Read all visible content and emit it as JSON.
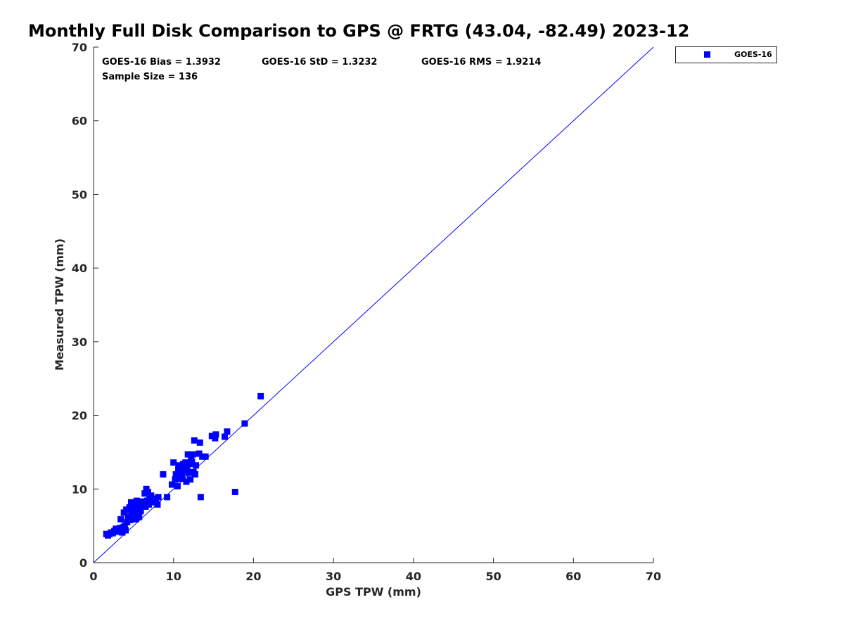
{
  "chart_data": {
    "type": "scatter",
    "title": "Monthly Full Disk Comparison to GPS @ FRTG (43.04, -82.49) 2023-12",
    "xlabel": "GPS TPW (mm)",
    "ylabel": "Measured TPW (mm)",
    "xlim": [
      0,
      70
    ],
    "ylim": [
      0,
      70
    ],
    "xticks": [
      0,
      10,
      20,
      30,
      40,
      50,
      60,
      70
    ],
    "yticks": [
      0,
      10,
      20,
      30,
      40,
      50,
      60,
      70
    ],
    "grid": false,
    "legend_position": "top-right, outside plot",
    "reference_line": {
      "x": [
        0,
        70
      ],
      "y": [
        0,
        70
      ],
      "color": "#0000ff"
    },
    "stats": {
      "bias": "GOES-16 Bias = 1.3932",
      "std": "GOES-16 StD = 1.3232",
      "rms": "GOES-16 RMS = 1.9214",
      "sample": "Sample Size = 136"
    },
    "series": [
      {
        "name": "GOES-16",
        "color": "#0000ff",
        "marker": "square",
        "points": [
          [
            1.6,
            3.9
          ],
          [
            1.8,
            3.7
          ],
          [
            2.0,
            3.9
          ],
          [
            2.2,
            4.1
          ],
          [
            2.4,
            4.0
          ],
          [
            2.6,
            4.3
          ],
          [
            2.8,
            4.6
          ],
          [
            3.0,
            4.4
          ],
          [
            3.1,
            4.2
          ],
          [
            3.3,
            4.7
          ],
          [
            3.4,
            5.9
          ],
          [
            3.5,
            4.5
          ],
          [
            3.6,
            4.1
          ],
          [
            3.7,
            4.8
          ],
          [
            3.8,
            6.8
          ],
          [
            3.9,
            5.0
          ],
          [
            4.0,
            4.4
          ],
          [
            4.1,
            7.2
          ],
          [
            4.2,
            5.5
          ],
          [
            4.3,
            6.3
          ],
          [
            4.4,
            6.1
          ],
          [
            4.5,
            7.5
          ],
          [
            4.6,
            5.8
          ],
          [
            4.7,
            8.2
          ],
          [
            4.8,
            7.0
          ],
          [
            4.9,
            6.8
          ],
          [
            5.0,
            7.8
          ],
          [
            5.1,
            6.4
          ],
          [
            5.2,
            7.3
          ],
          [
            5.3,
            5.9
          ],
          [
            5.4,
            8.4
          ],
          [
            5.5,
            6.7
          ],
          [
            5.6,
            7.6
          ],
          [
            5.7,
            6.2
          ],
          [
            5.8,
            8.1
          ],
          [
            5.9,
            7.0
          ],
          [
            6.0,
            8.3
          ],
          [
            6.2,
            7.8
          ],
          [
            6.3,
            8.0
          ],
          [
            6.4,
            9.4
          ],
          [
            6.5,
            7.6
          ],
          [
            6.6,
            10.0
          ],
          [
            6.7,
            8.4
          ],
          [
            6.8,
            9.6
          ],
          [
            6.9,
            7.9
          ],
          [
            7.0,
            8.6
          ],
          [
            7.2,
            9.1
          ],
          [
            7.4,
            8.2
          ],
          [
            7.6,
            8.7
          ],
          [
            7.8,
            8.4
          ],
          [
            8.0,
            7.9
          ],
          [
            8.1,
            8.9
          ],
          [
            8.7,
            12.0
          ],
          [
            9.2,
            8.9
          ],
          [
            9.8,
            10.6
          ],
          [
            10.0,
            13.6
          ],
          [
            10.2,
            11.3
          ],
          [
            10.3,
            12.0
          ],
          [
            10.4,
            11.8
          ],
          [
            10.5,
            10.4
          ],
          [
            10.6,
            12.7
          ],
          [
            10.7,
            13.2
          ],
          [
            10.8,
            12.3
          ],
          [
            10.9,
            11.4
          ],
          [
            11.0,
            12.9
          ],
          [
            11.1,
            11.8
          ],
          [
            11.2,
            13.4
          ],
          [
            11.3,
            12.5
          ],
          [
            11.4,
            13.0
          ],
          [
            11.5,
            13.6
          ],
          [
            11.6,
            11.0
          ],
          [
            11.7,
            12.8
          ],
          [
            11.8,
            14.7
          ],
          [
            11.9,
            12.2
          ],
          [
            12.0,
            13.4
          ],
          [
            12.1,
            11.3
          ],
          [
            12.2,
            14.2
          ],
          [
            12.3,
            13.7
          ],
          [
            12.4,
            14.7
          ],
          [
            12.5,
            12.3
          ],
          [
            12.6,
            16.6
          ],
          [
            12.7,
            12.0
          ],
          [
            12.8,
            13.2
          ],
          [
            13.2,
            14.8
          ],
          [
            13.3,
            16.3
          ],
          [
            13.4,
            8.9
          ],
          [
            13.6,
            14.4
          ],
          [
            14.0,
            14.4
          ],
          [
            14.8,
            17.2
          ],
          [
            15.2,
            16.9
          ],
          [
            15.3,
            17.4
          ],
          [
            16.4,
            17.1
          ],
          [
            16.7,
            17.8
          ],
          [
            17.7,
            9.6
          ],
          [
            18.9,
            18.9
          ],
          [
            20.9,
            22.6
          ]
        ]
      }
    ]
  }
}
